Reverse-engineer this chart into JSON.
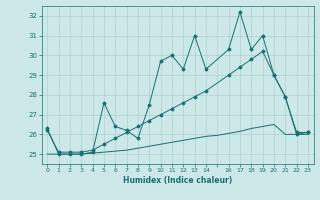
{
  "title": "",
  "xlabel": "Humidex (Indice chaleur)",
  "ylabel": "",
  "bg_color": "#cce8e8",
  "grid_color": "#b0d0d0",
  "line_color": "#1a7070",
  "x_min": -0.5,
  "x_max": 23.5,
  "y_min": 24.5,
  "y_max": 32.5,
  "yticks": [
    25,
    26,
    27,
    28,
    29,
    30,
    31,
    32
  ],
  "xtick_labels": [
    "0",
    "1",
    "2",
    "3",
    "4",
    "5",
    "6",
    "7",
    "8",
    "9",
    "10",
    "11",
    "12",
    "13",
    "14",
    "",
    "16",
    "17",
    "18",
    "19",
    "20",
    "21",
    "22",
    "23"
  ],
  "xtick_pos": [
    0,
    1,
    2,
    3,
    4,
    5,
    6,
    7,
    8,
    9,
    10,
    11,
    12,
    13,
    14,
    15,
    16,
    17,
    18,
    19,
    20,
    21,
    22,
    23
  ],
  "line1_x": [
    0,
    1,
    2,
    3,
    4,
    5,
    6,
    7,
    8,
    9,
    10,
    11,
    12,
    13,
    14,
    16,
    17,
    18,
    19,
    20,
    21,
    22,
    23
  ],
  "line1_y": [
    26.3,
    25.0,
    25.0,
    25.0,
    25.1,
    27.6,
    26.4,
    26.2,
    25.8,
    27.5,
    29.7,
    30.0,
    29.3,
    31.0,
    29.3,
    30.3,
    32.2,
    30.3,
    31.0,
    29.0,
    27.9,
    26.0,
    26.1
  ],
  "line2_x": [
    0,
    1,
    2,
    3,
    4,
    5,
    6,
    7,
    8,
    9,
    10,
    11,
    12,
    13,
    14,
    16,
    17,
    18,
    19,
    20,
    21,
    22,
    23
  ],
  "line2_y": [
    26.2,
    25.1,
    25.1,
    25.1,
    25.2,
    25.5,
    25.8,
    26.1,
    26.4,
    26.7,
    27.0,
    27.3,
    27.6,
    27.9,
    28.2,
    29.0,
    29.4,
    29.8,
    30.2,
    29.0,
    27.9,
    26.1,
    26.1
  ],
  "line3_x": [
    0,
    1,
    2,
    3,
    4,
    5,
    6,
    7,
    8,
    9,
    10,
    11,
    12,
    13,
    14,
    15,
    16,
    17,
    18,
    19,
    20,
    21,
    22,
    23
  ],
  "line3_y": [
    25.0,
    25.0,
    25.0,
    25.0,
    25.05,
    25.1,
    25.15,
    25.2,
    25.3,
    25.4,
    25.5,
    25.6,
    25.7,
    25.8,
    25.9,
    25.95,
    26.05,
    26.15,
    26.3,
    26.4,
    26.5,
    26.0,
    26.0,
    26.0
  ]
}
